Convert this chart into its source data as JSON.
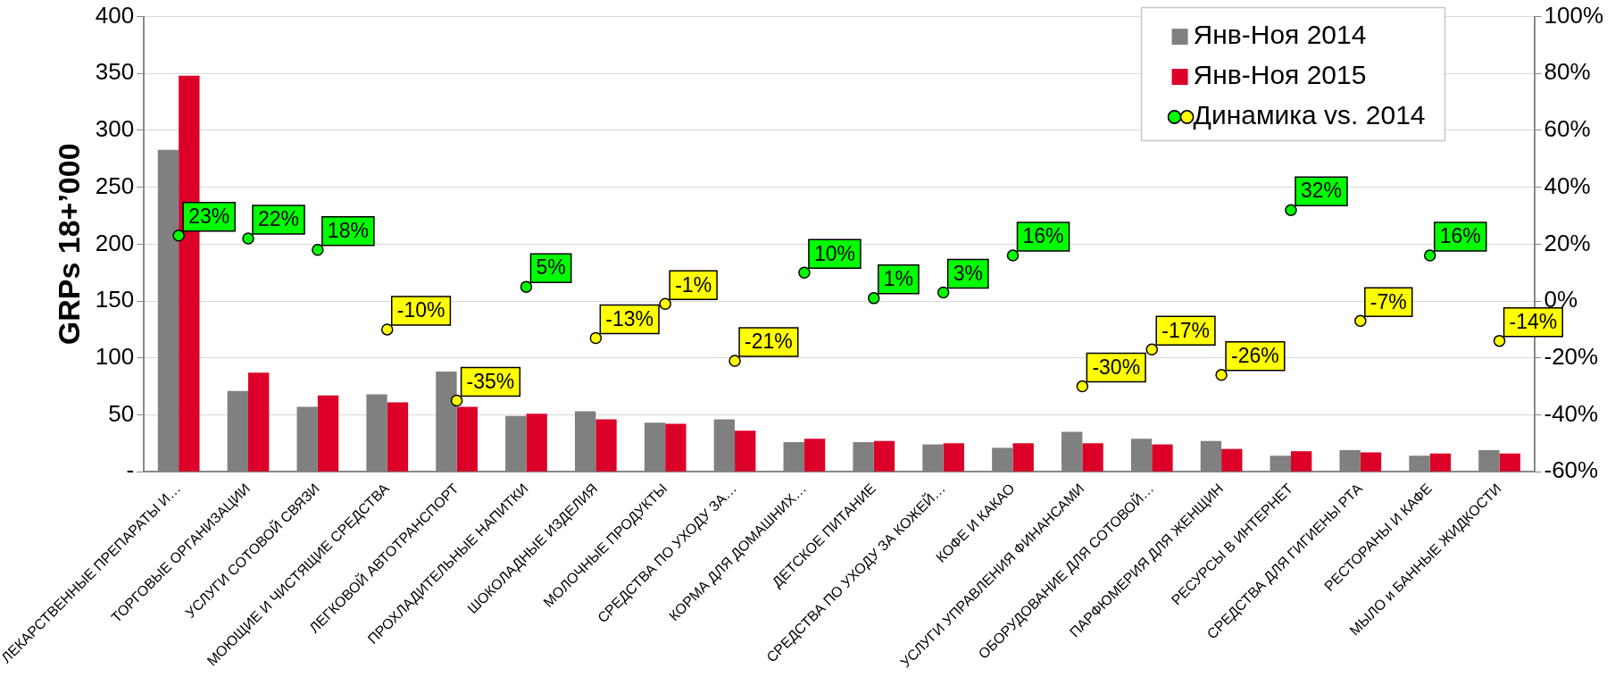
{
  "chart_data": {
    "type": "bar",
    "ylabel": "GRPs 18+’000",
    "categories": [
      "ЛЕКАРСТВЕННЫЕ ПРЕПАРАТЫ И…",
      "ТОРГОВЫЕ ОРГАНИЗАЦИИ",
      "УСЛУГИ СОТОВОЙ СВЯЗИ",
      "МОЮЩИЕ И ЧИСТЯЩИЕ СРЕДСТВА",
      "ЛЕГКОВОЙ АВТОТРАНСПОРТ",
      "ПРОХЛАДИТЕЛЬНЫЕ НАПИТКИ",
      "ШОКОЛАДНЫЕ ИЗДЕЛИЯ",
      "МОЛОЧНЫЕ ПРОДУКТЫ",
      "СРЕДСТВА ПО УХОДУ ЗА…",
      "КОРМА ДЛЯ ДОМАШНИХ…",
      "ДЕТСКОЕ ПИТАНИЕ",
      "СРЕДСТВА ПО УХОДУ ЗА КОЖЕЙ…",
      "КОФЕ И КАКАО",
      "УСЛУГИ УПРАВЛЕНИЯ ФИНАНСАМИ",
      "ОБОРУДОВАНИЕ ДЛЯ СОТОВОЙ…",
      "ПАРФЮМЕРИЯ ДЛЯ ЖЕНЩИН",
      "РЕСУРСЫ В ИНТЕРНЕТ",
      "СРЕДСТВА ДЛЯ ГИГИЕНЫ РТА",
      "РЕСТОРАНЫ И КАФЕ",
      "МЫЛО и БАННЫЕ ЖИДКОСТИ"
    ],
    "series": [
      {
        "name": "Янв-Ноя 2014",
        "color": "#808080",
        "values": [
          283,
          71,
          57,
          68,
          88,
          49,
          53,
          43,
          46,
          26,
          26,
          24,
          21,
          35,
          29,
          27,
          14,
          19,
          14,
          19
        ]
      },
      {
        "name": "Янв-Ноя 2015",
        "color": "#dc0028",
        "values": [
          348,
          87,
          67,
          61,
          57,
          51,
          46,
          42,
          36,
          29,
          27,
          25,
          25,
          25,
          24,
          20,
          18,
          17,
          16,
          16
        ]
      },
      {
        "name": "Динамика vs. 2014",
        "type": "scatter",
        "axis": "y2",
        "color": "#000000",
        "marker": "circle",
        "x": [
          "ЛЕКАРСТВЕННЫЕ ПРЕПАРАТЫ И…",
          "ТОРГОВЫЕ ОРГАНИЗАЦИИ",
          "УСЛУГИ СОТОВОЙ СВЯЗИ",
          "МОЮЩИЕ И ЧИСТЯЩИЕ СРЕДСТВА",
          "ЛЕГКОВОЙ АВТОТРАНСПОРТ",
          "ПРОХЛАДИТЕЛЬНЫЕ НАПИТКИ",
          "ШОКОЛАДНЫЕ ИЗДЕЛИЯ",
          "МОЛОЧНЫЕ ПРОДУКТЫ",
          "СРЕДСТВА ПО УХОДУ ЗА…",
          "КОРМА ДЛЯ ДОМАШНИХ…",
          "ДЕТСКОЕ ПИТАНИЕ",
          "СРЕДСТВА ПО УХОДУ ЗА КОЖЕЙ…",
          "КОФЕ И КАКАО",
          "УСЛУГИ УПРАВЛЕНИЯ ФИНАНСАМИ",
          "ОБОРУДОВАНИЕ ДЛЯ СОТОВОЙ…",
          "ПАРФЮМЕРИЯ ДЛЯ ЖЕНЩИН",
          "РЕСУРСЫ В ИНТЕРНЕТ",
          "СРЕДСТВА ДЛЯ ГИГИЕНЫ РТА",
          "РЕСТОРАНЫ И КАФЕ",
          "МЫЛО и БАННЫЕ ЖИДКОСТИ"
        ],
        "values": [
          23,
          22,
          18,
          -10,
          -35,
          5,
          -13,
          -1,
          -21,
          10,
          1,
          3,
          16,
          -30,
          -17,
          -26,
          32,
          -7,
          16,
          -14
        ],
        "colors": [
          "#00ff00",
          "#00ff00",
          "#00ff00",
          "#ffff00",
          "#ffff00",
          "#00ff00",
          "#ffff00",
          "#ffff00",
          "#ffff00",
          "#00ff00",
          "#00ff00",
          "#00ff00",
          "#00ff00",
          "#ffff00",
          "#ffff00",
          "#ffff00",
          "#00ff00",
          "#ffff00",
          "#00ff00",
          "#ffff00"
        ],
        "value_labels": [
          "23%",
          "22%",
          "18%",
          "-10%",
          "-35%",
          "5%",
          "-13%",
          "-1%",
          "-21%",
          "10%",
          "1%",
          "3%",
          "16%",
          "-30%",
          "-17%",
          "-26%",
          "32%",
          "-7%",
          "16%",
          "-14%"
        ]
      }
    ],
    "ylim": [
      0,
      400
    ],
    "yticks": [
      {
        "value": 0,
        "label": "-"
      },
      50,
      100,
      150,
      200,
      250,
      300,
      350,
      400
    ],
    "y2lim": [
      -60,
      100
    ],
    "y2ticks": [
      {
        "value": -60,
        "label": "-60%"
      },
      {
        "value": -40,
        "label": "-40%"
      },
      {
        "value": -20,
        "label": "-20%"
      },
      {
        "value": 0,
        "label": "0%"
      },
      {
        "value": 20,
        "label": "20%"
      },
      {
        "value": 40,
        "label": "40%"
      },
      {
        "value": 60,
        "label": "60%"
      },
      {
        "value": 80,
        "label": "80%"
      },
      {
        "value": 100,
        "label": "100%"
      }
    ],
    "grid": "y",
    "legend": "top right"
  }
}
